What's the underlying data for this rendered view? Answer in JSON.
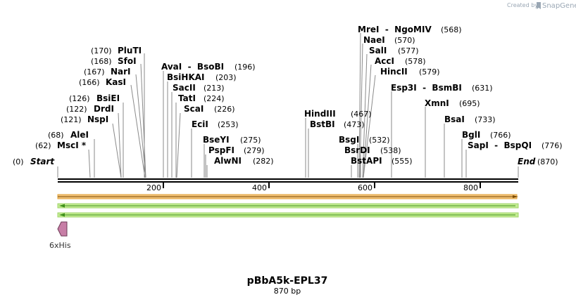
{
  "credit": {
    "prefix": "Created by",
    "brand": "SnapGene"
  },
  "map": {
    "title": "pBbA5k-EPL37",
    "subtitle": "870 bp",
    "length": 870,
    "ruler_ticks": [
      "200",
      "400",
      "600",
      "800"
    ],
    "start_label": "Start",
    "start_pos": "(0)",
    "end_label": "End",
    "end_pos": "(870)"
  },
  "sites": [
    {
      "name": "PluTI",
      "pos": "(170)"
    },
    {
      "name": "SfoI",
      "pos": "(168)"
    },
    {
      "name": "NarI",
      "pos": "(167)"
    },
    {
      "name": "KasI",
      "pos": "(166)"
    },
    {
      "name": "BsiEI",
      "pos": "(126)"
    },
    {
      "name": "DrdI",
      "pos": "(122)"
    },
    {
      "name": "NspI",
      "pos": "(121)"
    },
    {
      "name": "AleI",
      "pos": "(68)"
    },
    {
      "name": "MscI *",
      "pos": "(62)"
    },
    {
      "name": "AvaI  -  BsoBI",
      "pos": "(196)"
    },
    {
      "name": "BsiHKAI",
      "pos": "(203)"
    },
    {
      "name": "SacII",
      "pos": "(213)"
    },
    {
      "name": "TatI",
      "pos": "(224)"
    },
    {
      "name": "ScaI",
      "pos": "(226)"
    },
    {
      "name": "EciI",
      "pos": "(253)"
    },
    {
      "name": "BseYI",
      "pos": "(275)"
    },
    {
      "name": "PspFI",
      "pos": "(279)"
    },
    {
      "name": "AlwNI",
      "pos": "(282)"
    },
    {
      "name": "HindIII",
      "pos": "(467)"
    },
    {
      "name": "BstBI",
      "pos": "(473)"
    },
    {
      "name": "MreI  -  NgoMIV",
      "pos": "(568)"
    },
    {
      "name": "NaeI",
      "pos": "(570)"
    },
    {
      "name": "SalI",
      "pos": "(577)"
    },
    {
      "name": "AccI",
      "pos": "(578)"
    },
    {
      "name": "HincII",
      "pos": "(579)"
    },
    {
      "name": "BsgI",
      "pos": "(532)"
    },
    {
      "name": "BsrDI",
      "pos": "(538)"
    },
    {
      "name": "BstAPI",
      "pos": "(555)"
    },
    {
      "name": "Esp3I  -  BsmBI",
      "pos": "(631)"
    },
    {
      "name": "XmnI",
      "pos": "(695)"
    },
    {
      "name": "BsaI",
      "pos": "(733)"
    },
    {
      "name": "BglI",
      "pos": "(766)"
    },
    {
      "name": "SapI  -  BspQI",
      "pos": "(776)"
    }
  ],
  "features": [
    {
      "name": "6xHis",
      "color": "#c77ea6"
    }
  ],
  "colors": {
    "track_orange": "#f1c27a",
    "track_orange_edge": "#e2a33a",
    "track_green": "#c4ec93",
    "track_arrow": "#3e8f1a",
    "leader": "#8a8a8a"
  }
}
